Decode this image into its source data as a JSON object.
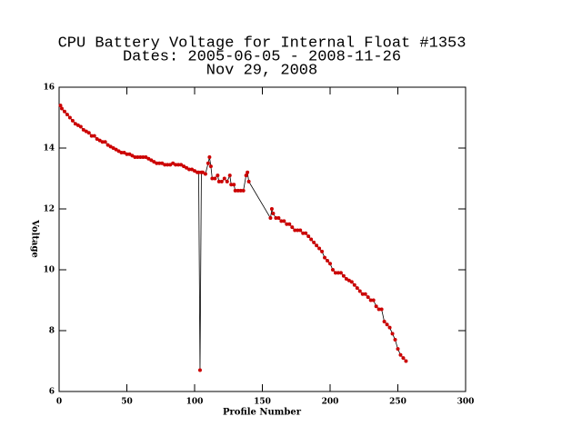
{
  "chart_data": {
    "type": "line",
    "title": [
      "CPU Battery Voltage for Internal Float #1353",
      "Dates:  2005-06-05 -  2008-11-26",
      "Nov 29, 2008"
    ],
    "xlabel": "Profile Number",
    "ylabel": "Voltage",
    "xlim": [
      0,
      300
    ],
    "xticks": [
      0,
      50,
      100,
      150,
      200,
      250,
      300
    ],
    "ylim": [
      6,
      16
    ],
    "yticks": [
      6,
      8,
      10,
      12,
      14,
      16
    ],
    "line_color": "#000000",
    "marker_color": "#cc0000",
    "x": [
      1,
      2,
      4,
      6,
      8,
      10,
      12,
      14,
      16,
      18,
      20,
      22,
      24,
      26,
      28,
      30,
      32,
      34,
      36,
      38,
      40,
      42,
      44,
      46,
      48,
      50,
      52,
      54,
      56,
      58,
      60,
      62,
      64,
      66,
      68,
      70,
      72,
      74,
      76,
      78,
      80,
      82,
      84,
      86,
      88,
      90,
      92,
      94,
      96,
      98,
      100,
      102,
      103,
      104,
      105,
      106,
      108,
      110,
      111,
      112,
      113,
      115,
      117,
      118,
      120,
      122,
      124,
      126,
      127,
      129,
      130,
      132,
      134,
      136,
      138,
      139,
      140,
      156,
      157,
      158,
      160,
      162,
      164,
      166,
      168,
      170,
      172,
      174,
      176,
      178,
      180,
      182,
      184,
      186,
      188,
      190,
      192,
      194,
      196,
      198,
      200,
      202,
      204,
      206,
      208,
      210,
      212,
      214,
      216,
      218,
      220,
      222,
      224,
      226,
      228,
      230,
      232,
      234,
      236,
      238,
      240,
      242,
      244,
      246,
      248,
      250,
      252,
      254,
      256
    ],
    "values": [
      15.4,
      15.3,
      15.2,
      15.1,
      15.0,
      14.9,
      14.8,
      14.75,
      14.7,
      14.6,
      14.55,
      14.5,
      14.4,
      14.4,
      14.3,
      14.25,
      14.2,
      14.2,
      14.1,
      14.05,
      14.0,
      13.95,
      13.9,
      13.85,
      13.85,
      13.8,
      13.8,
      13.75,
      13.7,
      13.7,
      13.7,
      13.7,
      13.7,
      13.65,
      13.6,
      13.55,
      13.5,
      13.5,
      13.5,
      13.45,
      13.45,
      13.45,
      13.5,
      13.45,
      13.45,
      13.45,
      13.4,
      13.35,
      13.3,
      13.3,
      13.25,
      13.2,
      13.2,
      6.7,
      13.2,
      13.2,
      13.15,
      13.5,
      13.7,
      13.4,
      13.0,
      13.0,
      13.1,
      12.9,
      12.9,
      13.0,
      12.9,
      13.1,
      12.8,
      12.8,
      12.6,
      12.6,
      12.6,
      12.6,
      13.1,
      13.2,
      12.9,
      11.7,
      12.0,
      11.85,
      11.7,
      11.7,
      11.6,
      11.6,
      11.5,
      11.5,
      11.4,
      11.3,
      11.3,
      11.3,
      11.2,
      11.2,
      11.1,
      11.0,
      10.9,
      10.8,
      10.7,
      10.6,
      10.4,
      10.3,
      10.2,
      10.0,
      9.9,
      9.9,
      9.9,
      9.8,
      9.7,
      9.65,
      9.6,
      9.5,
      9.4,
      9.3,
      9.2,
      9.2,
      9.1,
      9.0,
      9.0,
      8.8,
      8.7,
      8.7,
      8.3,
      8.2,
      8.1,
      7.9,
      7.7,
      7.4,
      7.2,
      7.1,
      7.0
    ]
  }
}
